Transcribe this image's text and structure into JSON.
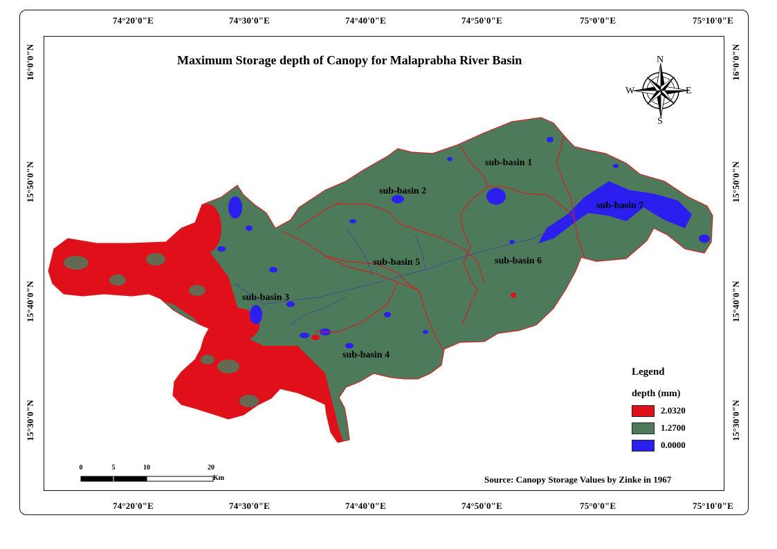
{
  "map": {
    "title": "Maximum Storage depth of Canopy for Malaprabha River Basin",
    "longitude_labels": [
      "74°20'0\"E",
      "74°30'0\"E",
      "74°40'0\"E",
      "74°50'0\"E",
      "75°0'0\"E",
      "75°10'0\"E"
    ],
    "latitude_labels": [
      "16°0'0\"N",
      "15°50'0\"N",
      "15°40'0\"N",
      "15°30'0\"N"
    ],
    "sub_basins": [
      "sub-basin 1",
      "sub-basin 2",
      "sub-basin 3",
      "sub-basin 4",
      "sub-basin 5",
      "sub-basin 6",
      "sub-basin 7"
    ],
    "north_arrow": {
      "n": "N",
      "s": "S",
      "e": "E",
      "w": "W",
      "icon": "compass-rose-icon"
    },
    "legend": {
      "title": "Legend",
      "subtitle": "depth (mm)",
      "items": [
        {
          "label": "2.0320",
          "color": "#e0101a"
        },
        {
          "label": "1.2700",
          "color": "#4e7a5c"
        },
        {
          "label": "0.0000",
          "color": "#2b1ff0"
        }
      ]
    },
    "scale_bar": {
      "ticks": [
        "0",
        "5",
        "10",
        "20"
      ],
      "unit": "Km"
    },
    "source": "Source: Canopy Storage Values by Zinke in 1967",
    "colors": {
      "boundary": "#d42020",
      "river": "#3a3aa8"
    }
  }
}
